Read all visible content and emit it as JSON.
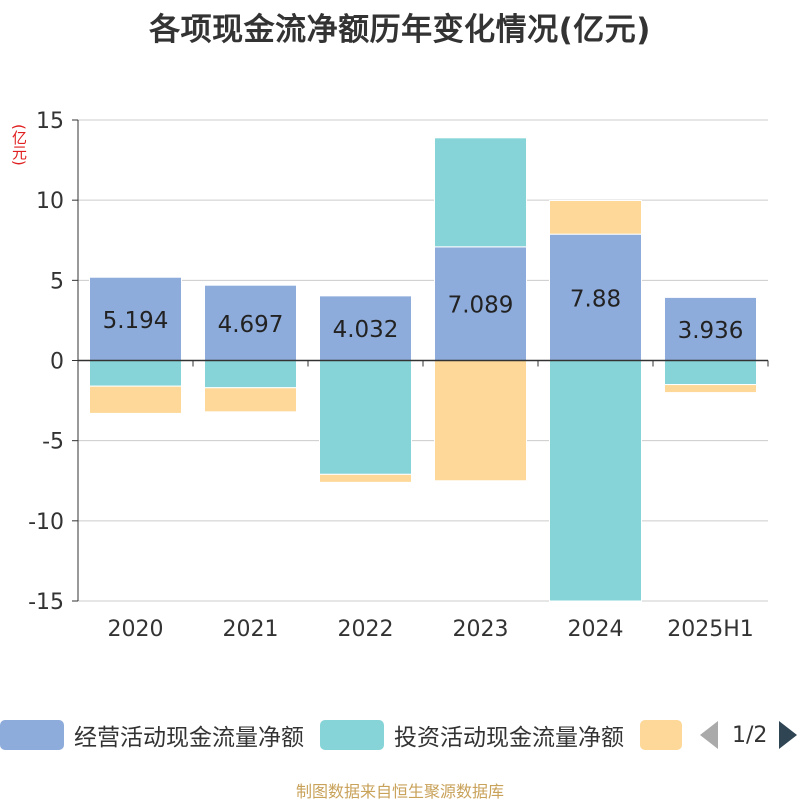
{
  "title": "各项现金流净额历年变化情况(亿元)",
  "unit_label": "(亿元)",
  "source": "制图数据来自恒生聚源数据库",
  "pager": {
    "text": "1/2"
  },
  "colors": {
    "operating": "#8eacdb",
    "investing": "#86d4d8",
    "financing": "#fdd898",
    "grid": "#cccccc",
    "axis": "#333333",
    "pager_active": "#2f4554",
    "pager_inactive": "#aaaaaa"
  },
  "chart_data": {
    "type": "bar",
    "stacked": true,
    "categories": [
      "2020",
      "2021",
      "2022",
      "2023",
      "2024",
      "2025H1"
    ],
    "ylim": [
      -15,
      15
    ],
    "yticks": [
      15,
      10,
      5,
      0,
      -5,
      -10,
      -15
    ],
    "series": [
      {
        "name": "经营活动现金流量净额",
        "color_key": "operating",
        "values": [
          5.194,
          4.697,
          4.032,
          7.089,
          7.88,
          3.936
        ],
        "labels": [
          "5.194",
          "4.697",
          "4.032",
          "7.089",
          "7.88",
          "3.936"
        ]
      },
      {
        "name": "投资活动现金流量净额",
        "color_key": "investing",
        "values": [
          -1.6,
          -1.7,
          -7.1,
          6.8,
          -15.0,
          -1.5
        ]
      },
      {
        "name": "",
        "color_key": "financing",
        "values": [
          -1.7,
          -1.5,
          -0.5,
          -7.5,
          2.1,
          -0.5
        ]
      }
    ]
  }
}
